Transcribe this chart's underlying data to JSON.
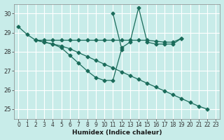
{
  "xlabel": "Humidex (Indice chaleur)",
  "background_color": "#c8ece9",
  "line_color": "#1a6b5a",
  "grid_color": "#ffffff",
  "xlim": [
    -0.5,
    23.5
  ],
  "ylim": [
    24.5,
    30.5
  ],
  "yticks": [
    25,
    26,
    27,
    28,
    29,
    30
  ],
  "xticks": [
    0,
    1,
    2,
    3,
    4,
    5,
    6,
    7,
    8,
    9,
    10,
    11,
    12,
    13,
    14,
    15,
    16,
    17,
    18,
    19,
    20,
    21,
    22,
    23
  ],
  "series1_x": [
    0,
    1,
    2,
    3,
    4,
    5,
    6,
    7,
    8,
    9,
    10,
    11,
    12,
    13,
    14,
    15,
    16,
    17,
    18,
    19,
    20,
    21,
    22
  ],
  "series1_y": [
    29.3,
    28.9,
    28.6,
    28.5,
    28.4,
    28.3,
    28.15,
    27.95,
    27.75,
    27.55,
    27.35,
    27.15,
    26.95,
    26.75,
    26.55,
    26.35,
    26.15,
    25.95,
    25.75,
    25.55,
    25.35,
    25.15,
    25.0
  ],
  "series2_x": [
    2,
    3,
    4,
    5,
    6,
    7,
    8,
    9,
    10,
    11,
    12,
    13,
    14,
    15,
    16,
    17,
    18,
    19
  ],
  "series2_y": [
    28.6,
    28.6,
    28.6,
    28.6,
    28.6,
    28.6,
    28.6,
    28.6,
    28.6,
    28.6,
    28.6,
    28.6,
    28.6,
    28.6,
    28.55,
    28.5,
    28.5,
    28.7
  ],
  "series3_x": [
    11,
    12,
    13,
    14,
    15,
    16,
    17,
    18,
    19
  ],
  "series3_y": [
    30.0,
    28.2,
    28.5,
    30.3,
    28.5,
    28.4,
    28.4,
    28.4,
    28.7
  ],
  "series4_x": [
    2,
    3,
    4,
    5,
    6,
    7,
    8,
    9,
    10,
    11,
    12
  ],
  "series4_y": [
    28.6,
    28.5,
    28.4,
    28.2,
    27.8,
    27.4,
    27.0,
    26.65,
    26.5,
    26.5,
    28.1
  ]
}
